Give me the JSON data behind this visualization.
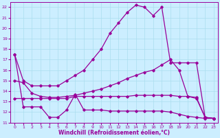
{
  "xlabel": "Windchill (Refroidissement éolien,°C)",
  "xlim": [
    -0.5,
    23.5
  ],
  "ylim": [
    11,
    22.5
  ],
  "yticks": [
    11,
    12,
    13,
    14,
    15,
    16,
    17,
    18,
    19,
    20,
    21,
    22
  ],
  "xticks": [
    0,
    1,
    2,
    3,
    4,
    5,
    6,
    7,
    8,
    9,
    10,
    11,
    12,
    13,
    14,
    15,
    16,
    17,
    18,
    19,
    20,
    21,
    22,
    23
  ],
  "bg_color": "#cceeff",
  "line_color": "#990099",
  "s1": [
    17.5,
    15.0,
    14.5,
    14.5,
    14.5,
    14.5,
    15.0,
    15.5,
    16.0,
    17.0,
    18.0,
    19.5,
    20.5,
    21.5,
    22.2,
    22.0,
    21.2,
    22.0,
    16.7,
    16.7,
    16.7,
    16.7,
    11.5,
    11.4
  ],
  "s2": [
    15.0,
    14.8,
    13.8,
    13.5,
    13.4,
    13.4,
    13.5,
    13.6,
    13.8,
    14.0,
    14.2,
    14.5,
    14.8,
    15.2,
    15.5,
    15.8,
    16.0,
    16.5,
    17.0,
    16.0,
    13.5,
    13.3,
    11.5,
    11.4
  ],
  "s3": [
    13.3,
    13.3,
    13.3,
    13.3,
    13.3,
    13.3,
    13.3,
    13.5,
    13.5,
    13.5,
    13.5,
    13.5,
    13.5,
    13.5,
    13.6,
    13.6,
    13.6,
    13.6,
    13.6,
    13.5,
    13.5,
    13.4,
    11.5,
    11.4
  ],
  "s4": [
    17.5,
    12.5,
    12.5,
    12.5,
    11.5,
    11.5,
    12.2,
    13.7,
    12.2,
    12.2,
    12.2,
    12.1,
    12.1,
    12.1,
    12.1,
    12.1,
    12.1,
    12.1,
    12.0,
    11.8,
    11.6,
    11.5,
    11.4,
    11.4
  ]
}
